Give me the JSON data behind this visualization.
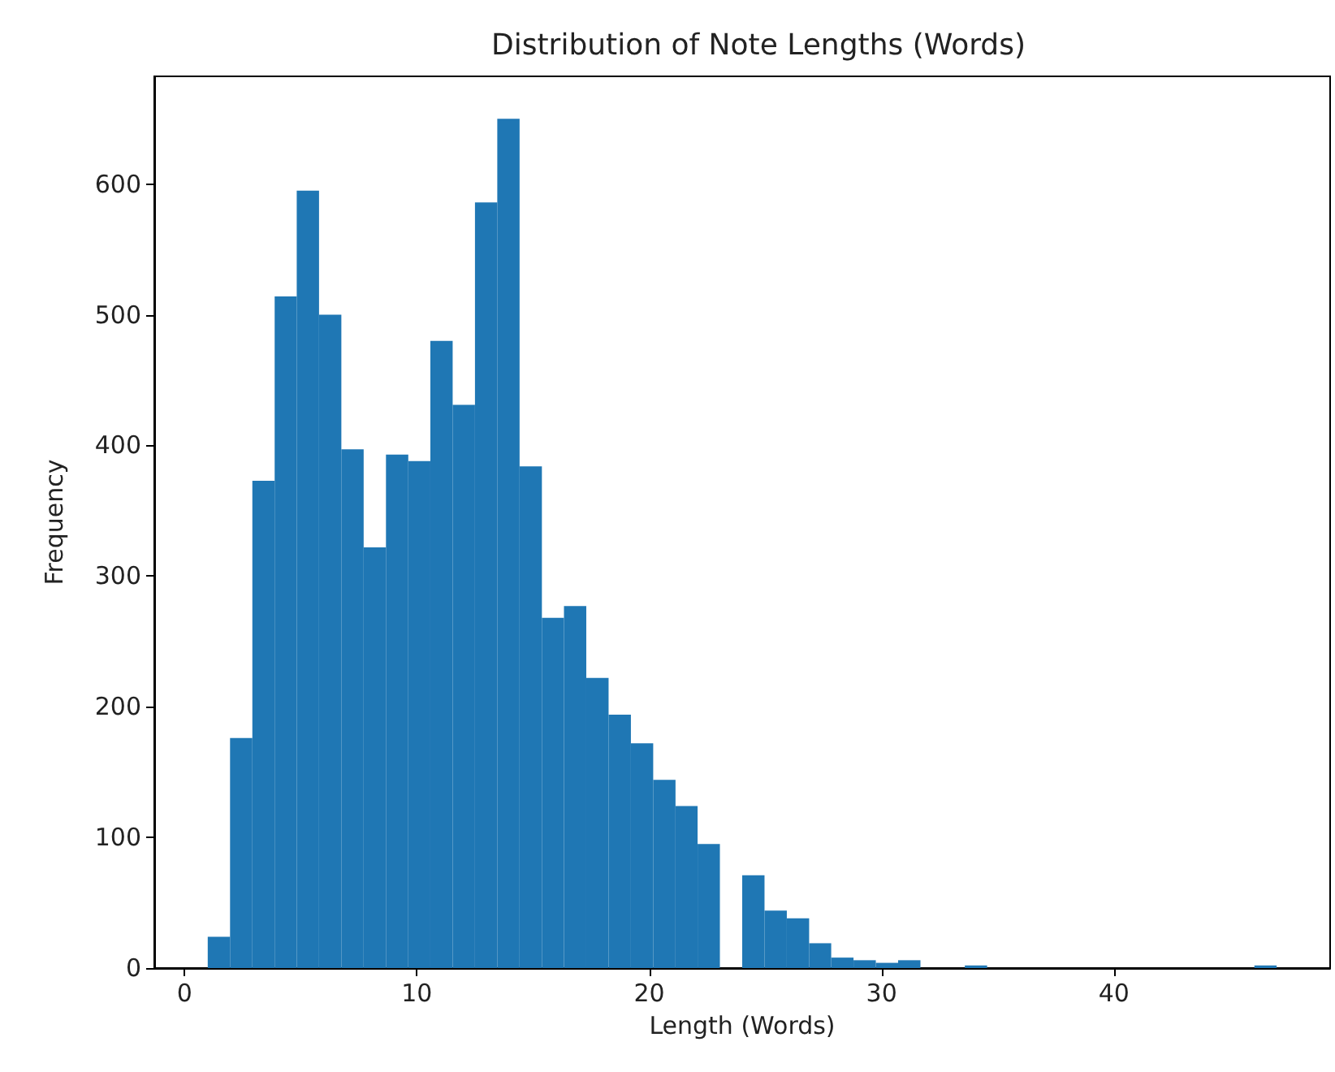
{
  "chart_data": {
    "type": "histogram",
    "title": "Distribution of Note Lengths (Words)",
    "xlabel": "Length (Words)",
    "ylabel": "Frequency",
    "color": "#1f77b4",
    "bins": [
      1.0,
      1.96,
      2.92,
      3.88,
      4.83,
      5.79,
      6.75,
      7.71,
      8.67,
      9.63,
      10.58,
      11.54,
      12.5,
      13.46,
      14.42,
      15.38,
      16.33,
      17.29,
      18.25,
      19.21,
      20.17,
      21.13,
      22.08,
      23.04,
      24.0,
      24.96,
      25.92,
      26.88,
      27.83,
      28.79,
      29.75,
      30.71,
      31.67,
      32.63,
      33.58,
      34.54,
      35.5,
      36.46,
      37.42,
      38.38,
      39.33,
      40.29,
      41.25,
      42.21,
      43.17,
      44.13,
      45.08,
      46.04,
      47.0
    ],
    "values": [
      24,
      176,
      373,
      514,
      595,
      500,
      397,
      322,
      393,
      388,
      480,
      431,
      586,
      650,
      384,
      268,
      277,
      222,
      194,
      172,
      144,
      124,
      95,
      0,
      71,
      44,
      38,
      19,
      8,
      6,
      4,
      6,
      0,
      0,
      2,
      0,
      0,
      0,
      0,
      0,
      0,
      0,
      0,
      0,
      0,
      0,
      0,
      2
    ],
    "xlim": [
      -1.3,
      49.3
    ],
    "xticks": [
      0,
      10,
      20,
      30,
      40
    ],
    "ylim": [
      0,
      682.5
    ],
    "yticks": [
      0,
      100,
      200,
      300,
      400,
      500,
      600
    ]
  }
}
